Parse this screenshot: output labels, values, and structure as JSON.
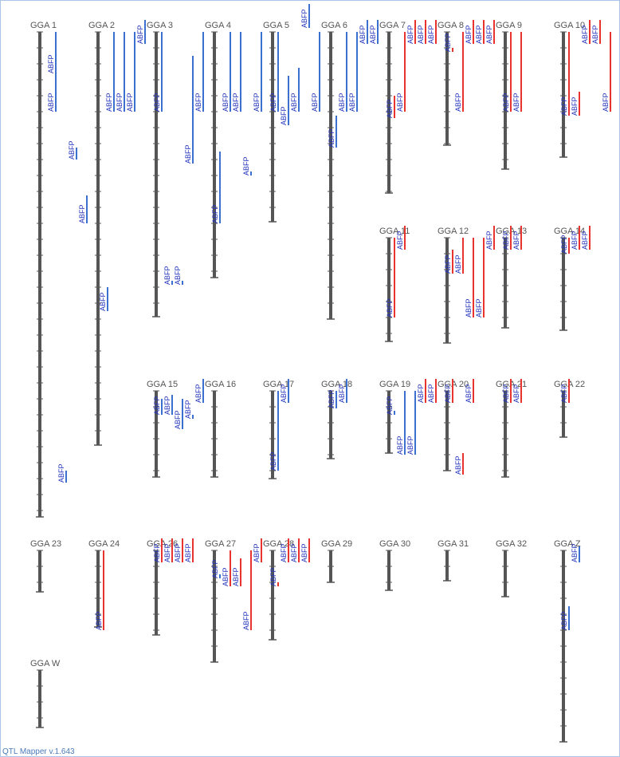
{
  "footer": "QTL Mapper v.1.643",
  "tick_interval": 20,
  "chromosomes": [
    {
      "label": "GGA 1",
      "length": 608,
      "qtls": [
        {
          "label": "ABFP",
          "start": 0,
          "end": 52,
          "lane": 0,
          "color": "#3b6fd0"
        },
        {
          "label": "ABFP",
          "start": 52,
          "end": 100,
          "lane": 0,
          "color": "#3b6fd0"
        },
        {
          "label": "ABFP",
          "start": 550,
          "end": 565,
          "lane": 1,
          "color": "#3b6fd0"
        },
        {
          "label": "ABFP",
          "start": 145,
          "end": 160,
          "lane": 2,
          "color": "#3b6fd0"
        },
        {
          "label": "ABFP",
          "start": 205,
          "end": 240,
          "lane": 3,
          "color": "#3b6fd0"
        },
        {
          "label": "ABFP",
          "start": 320,
          "end": 350,
          "lane": 5,
          "color": "#3b6fd0"
        }
      ]
    },
    {
      "label": "GGA 2",
      "length": 518,
      "qtls": [
        {
          "label": "ABFP",
          "start": 0,
          "end": 100,
          "lane": 0,
          "color": "#3b6fd0"
        },
        {
          "label": "ABFP",
          "start": 0,
          "end": 100,
          "lane": 1,
          "color": "#3b6fd0"
        },
        {
          "label": "ABFP",
          "start": 0,
          "end": 100,
          "lane": 2,
          "color": "#3b6fd0"
        },
        {
          "label": "ABFP",
          "start": -15,
          "end": 15,
          "lane": 3,
          "color": "#3b6fd0"
        }
      ]
    },
    {
      "label": "GGA 3",
      "length": 357,
      "qtls": [
        {
          "label": "ABFP",
          "start": 0,
          "end": 100,
          "lane": -1,
          "color": "#3b6fd0"
        },
        {
          "label": "ABFP",
          "start": 312,
          "end": 317,
          "lane": 0,
          "color": "#3b6fd0"
        },
        {
          "label": "ABFP",
          "start": 312,
          "end": 317,
          "lane": 1,
          "color": "#3b6fd0"
        },
        {
          "label": "ABFP",
          "start": 30,
          "end": 165,
          "lane": 2,
          "color": "#3b6fd0"
        },
        {
          "label": "ABFP",
          "start": 0,
          "end": 100,
          "lane": 3,
          "color": "#3b6fd0"
        }
      ]
    },
    {
      "label": "GGA 4",
      "length": 308,
      "qtls": [
        {
          "label": "ABFP",
          "start": 150,
          "end": 240,
          "lane": -1,
          "color": "#3b6fd0"
        },
        {
          "label": "ABFP",
          "start": 0,
          "end": 100,
          "lane": 0,
          "color": "#3b6fd0"
        },
        {
          "label": "ABFP",
          "start": 0,
          "end": 100,
          "lane": 1,
          "color": "#3b6fd0"
        },
        {
          "label": "ABFP",
          "start": 175,
          "end": 180,
          "lane": 2,
          "color": "#3b6fd0"
        },
        {
          "label": "ABFP",
          "start": 0,
          "end": 100,
          "lane": 3,
          "color": "#3b6fd0"
        }
      ]
    },
    {
      "label": "GGA 5",
      "length": 238,
      "qtls": [
        {
          "label": "ABFP",
          "start": 0,
          "end": 100,
          "lane": -1,
          "color": "#3b6fd0"
        },
        {
          "label": "ABFP",
          "start": 55,
          "end": 117,
          "lane": 0,
          "color": "#3b6fd0"
        },
        {
          "label": "ABFP",
          "start": 45,
          "end": 100,
          "lane": 1,
          "color": "#3b6fd0"
        },
        {
          "label": "ABFP",
          "start": -35,
          "end": -5,
          "lane": 2,
          "color": "#3b6fd0"
        },
        {
          "label": "ABFP",
          "start": 0,
          "end": 100,
          "lane": 3,
          "color": "#3b6fd0"
        }
      ]
    },
    {
      "label": "GGA 6",
      "length": 360,
      "qtls": [
        {
          "label": "ABFP",
          "start": 105,
          "end": 145,
          "lane": -1,
          "color": "#3b6fd0"
        },
        {
          "label": "ABFP",
          "start": 0,
          "end": 100,
          "lane": 0,
          "color": "#3b6fd0"
        },
        {
          "label": "ABFP",
          "start": 0,
          "end": 100,
          "lane": 1,
          "color": "#3b6fd0"
        },
        {
          "label": "ABFP",
          "start": -15,
          "end": 15,
          "lane": 2,
          "color": "#3b6fd0"
        },
        {
          "label": "ABFP",
          "start": -15,
          "end": 15,
          "lane": 3,
          "color": "#3b6fd0"
        }
      ]
    },
    {
      "label": "GGA 7",
      "length": 202,
      "qtls": [
        {
          "label": "ABFP",
          "start": 80,
          "end": 108,
          "lane": -1,
          "color": "#e8332e"
        },
        {
          "label": "ABFP",
          "start": 0,
          "end": 100,
          "lane": 0,
          "color": "#e8332e"
        },
        {
          "label": "ABFP",
          "start": -15,
          "end": 15,
          "lane": 1,
          "color": "#e8332e"
        },
        {
          "label": "ABFP",
          "start": -15,
          "end": 15,
          "lane": 2,
          "color": "#e8332e"
        },
        {
          "label": "ABFP",
          "start": -15,
          "end": 15,
          "lane": 3,
          "color": "#e8332e"
        }
      ]
    },
    {
      "label": "GGA 8",
      "length": 142,
      "qtls": [
        {
          "label": "ABFP",
          "start": 20,
          "end": 25,
          "lane": -1,
          "color": "#e8332e"
        },
        {
          "label": "ABFP",
          "start": 0,
          "end": 100,
          "lane": 0,
          "color": "#e8332e"
        },
        {
          "label": "ABFP",
          "start": -15,
          "end": 15,
          "lane": 1,
          "color": "#e8332e"
        },
        {
          "label": "ABFP",
          "start": -15,
          "end": 15,
          "lane": 2,
          "color": "#e8332e"
        },
        {
          "label": "ABFP",
          "start": -15,
          "end": 15,
          "lane": 3,
          "color": "#e8332e"
        }
      ]
    },
    {
      "label": "GGA 9",
      "length": 172,
      "qtls": [
        {
          "label": "ABFP",
          "start": 0,
          "end": 100,
          "lane": -1,
          "color": "#e8332e"
        },
        {
          "label": "ABFP",
          "start": 0,
          "end": 100,
          "lane": 0,
          "color": "#e8332e"
        }
      ]
    },
    {
      "label": "GGA 10",
      "length": 157,
      "qtls": [
        {
          "label": "ABFP",
          "start": 0,
          "end": 105,
          "lane": -1,
          "color": "#e8332e"
        },
        {
          "label": "ABFP",
          "start": 75,
          "end": 105,
          "lane": 0,
          "color": "#e8332e"
        },
        {
          "label": "ABFP",
          "start": -15,
          "end": 15,
          "lane": 1,
          "color": "#e8332e"
        },
        {
          "label": "ABFP",
          "start": -15,
          "end": 15,
          "lane": 2,
          "color": "#e8332e"
        },
        {
          "label": "ABFP",
          "start": 0,
          "end": 100,
          "lane": 3,
          "color": "#e8332e"
        }
      ]
    },
    {
      "label": "GGA 11",
      "length": 130,
      "qtls": [
        {
          "label": "ABFP",
          "start": 0,
          "end": 100,
          "lane": -1,
          "color": "#e8332e"
        },
        {
          "label": "ABFP",
          "start": -15,
          "end": 15,
          "lane": 0,
          "color": "#e8332e"
        }
      ]
    },
    {
      "label": "GGA 12",
      "length": 132,
      "qtls": [
        {
          "label": "ABFP",
          "start": 15,
          "end": 45,
          "lane": -1,
          "color": "#e8332e"
        },
        {
          "label": "ABFP",
          "start": 0,
          "end": 45,
          "lane": 0,
          "color": "#e8332e"
        },
        {
          "label": "ABFP",
          "start": 0,
          "end": 100,
          "lane": 1,
          "color": "#e8332e"
        },
        {
          "label": "ABFP",
          "start": 0,
          "end": 100,
          "lane": 2,
          "color": "#e8332e"
        },
        {
          "label": "ABFP",
          "start": -15,
          "end": 15,
          "lane": 3,
          "color": "#e8332e"
        }
      ]
    },
    {
      "label": "GGA 13",
      "length": 113,
      "qtls": [
        {
          "label": "ABFP",
          "start": -15,
          "end": 15,
          "lane": -1,
          "color": "#e8332e"
        },
        {
          "label": "ABFP",
          "start": -15,
          "end": 15,
          "lane": 0,
          "color": "#e8332e"
        }
      ]
    },
    {
      "label": "GGA 14",
      "length": 116,
      "qtls": [
        {
          "label": "ABFP",
          "start": 0,
          "end": 20,
          "lane": -1,
          "color": "#e8332e"
        },
        {
          "label": "ABFP",
          "start": -15,
          "end": 15,
          "lane": 0,
          "color": "#e8332e"
        },
        {
          "label": "ABFP",
          "start": -15,
          "end": 15,
          "lane": 1,
          "color": "#e8332e"
        }
      ]
    },
    {
      "label": "GGA 15",
      "length": 108,
      "qtls": [
        {
          "label": "ABFP",
          "start": 10,
          "end": 30,
          "lane": -1,
          "color": "#3b6fd0"
        },
        {
          "label": "ABFP",
          "start": 5,
          "end": 30,
          "lane": 0,
          "color": "#3b6fd0"
        },
        {
          "label": "ABFP",
          "start": 10,
          "end": 48,
          "lane": 1,
          "color": "#3b6fd0"
        },
        {
          "label": "ABFP",
          "start": 30,
          "end": 35,
          "lane": 2,
          "color": "#3b6fd0"
        },
        {
          "label": "ABFP",
          "start": -15,
          "end": 15,
          "lane": 3,
          "color": "#3b6fd0"
        }
      ]
    },
    {
      "label": "GGA 16",
      "length": 108,
      "qtls": []
    },
    {
      "label": "GGA 17",
      "length": 110,
      "qtls": [
        {
          "label": "ABFP",
          "start": 0,
          "end": 100,
          "lane": -1,
          "color": "#3b6fd0"
        },
        {
          "label": "ABFP",
          "start": -15,
          "end": 15,
          "lane": 0,
          "color": "#3b6fd0"
        }
      ]
    },
    {
      "label": "GGA 18",
      "length": 85,
      "qtls": [
        {
          "label": "ABFP",
          "start": 0,
          "end": 22,
          "lane": -1,
          "color": "#3b6fd0"
        },
        {
          "label": "ABFP",
          "start": -15,
          "end": 15,
          "lane": 0,
          "color": "#3b6fd0"
        }
      ]
    },
    {
      "label": "GGA 19",
      "length": 78,
      "qtls": [
        {
          "label": "ABFP",
          "start": 25,
          "end": 30,
          "lane": -1,
          "color": "#3b6fd0"
        },
        {
          "label": "ABFP",
          "start": 0,
          "end": 80,
          "lane": 0,
          "color": "#3b6fd0"
        },
        {
          "label": "ABFP",
          "start": 0,
          "end": 80,
          "lane": 1,
          "color": "#3b6fd0"
        },
        {
          "label": "ABFP",
          "start": -15,
          "end": 15,
          "lane": 2,
          "color": "#e8332e"
        },
        {
          "label": "ABFP",
          "start": -15,
          "end": 15,
          "lane": 3,
          "color": "#e8332e"
        }
      ]
    },
    {
      "label": "GGA 20",
      "length": 100,
      "qtls": [
        {
          "label": "ABFP",
          "start": -15,
          "end": 15,
          "lane": -1,
          "color": "#e8332e"
        },
        {
          "label": "ABFP",
          "start": 78,
          "end": 105,
          "lane": 0,
          "color": "#e8332e"
        },
        {
          "label": "ABFP",
          "start": -15,
          "end": 15,
          "lane": 1,
          "color": "#e8332e"
        }
      ]
    },
    {
      "label": "GGA 21",
      "length": 108,
      "qtls": [
        {
          "label": "ABFP",
          "start": -15,
          "end": 15,
          "lane": -1,
          "color": "#e8332e"
        },
        {
          "label": "ABFP",
          "start": -15,
          "end": 15,
          "lane": 0,
          "color": "#e8332e"
        }
      ]
    },
    {
      "label": "GGA 22",
      "length": 58,
      "qtls": [
        {
          "label": "ABFP",
          "start": -15,
          "end": 15,
          "lane": -1,
          "color": "#e8332e"
        }
      ]
    },
    {
      "label": "GGA 23",
      "length": 52,
      "qtls": []
    },
    {
      "label": "GGA 24",
      "length": 96,
      "qtls": [
        {
          "label": "ABFP",
          "start": 0,
          "end": 100,
          "lane": -1,
          "color": "#e8332e"
        }
      ]
    },
    {
      "label": "GGA 26",
      "length": 106,
      "qtls": [
        {
          "label": "ABFP",
          "start": -15,
          "end": 15,
          "lane": -1,
          "color": "#e8332e"
        },
        {
          "label": "ABFP",
          "start": -15,
          "end": 15,
          "lane": 0,
          "color": "#e8332e"
        },
        {
          "label": "ABFP",
          "start": -15,
          "end": 15,
          "lane": 1,
          "color": "#e8332e"
        },
        {
          "label": "ABFP",
          "start": -15,
          "end": 15,
          "lane": 2,
          "color": "#e8332e"
        }
      ]
    },
    {
      "label": "GGA 27",
      "length": 140,
      "qtls": [
        {
          "label": "ABFP",
          "start": 30,
          "end": 35,
          "lane": -1,
          "color": "#3b6fd0"
        },
        {
          "label": "ABFP",
          "start": 0,
          "end": 45,
          "lane": 0,
          "color": "#e8332e"
        },
        {
          "label": "ABFP",
          "start": 10,
          "end": 45,
          "lane": 1,
          "color": "#e8332e"
        },
        {
          "label": "ABFP",
          "start": 0,
          "end": 100,
          "lane": 2,
          "color": "#e8332e"
        },
        {
          "label": "ABFP",
          "start": -15,
          "end": 15,
          "lane": 3,
          "color": "#e8332e"
        }
      ]
    },
    {
      "label": "GGA 28",
      "length": 112,
      "qtls": [
        {
          "label": "ABFP",
          "start": 40,
          "end": 45,
          "lane": -1,
          "color": "#e8332e"
        },
        {
          "label": "ABFP",
          "start": -15,
          "end": 15,
          "lane": 0,
          "color": "#e8332e"
        },
        {
          "label": "ABFP",
          "start": -15,
          "end": 15,
          "lane": 1,
          "color": "#e8332e"
        },
        {
          "label": "ABFP",
          "start": -15,
          "end": 15,
          "lane": 2,
          "color": "#e8332e"
        }
      ]
    },
    {
      "label": "GGA 29",
      "length": 40,
      "qtls": []
    },
    {
      "label": "GGA 30",
      "length": 50,
      "qtls": []
    },
    {
      "label": "GGA 31",
      "length": 38,
      "qtls": []
    },
    {
      "label": "GGA 32",
      "length": 58,
      "qtls": []
    },
    {
      "label": "GGA Z",
      "length": 240,
      "qtls": [
        {
          "label": "ABFP",
          "start": -5,
          "end": 15,
          "lane": 0,
          "color": "#3b6fd0"
        },
        {
          "label": "ABFP",
          "start": 70,
          "end": 100,
          "lane": -1,
          "color": "#3b6fd0"
        }
      ]
    },
    {
      "label": "GGA W",
      "length": 72,
      "qtls": []
    }
  ]
}
